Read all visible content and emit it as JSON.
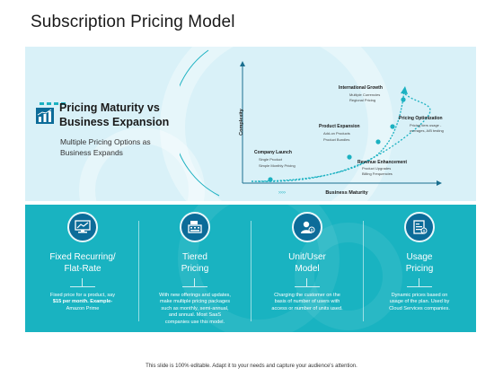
{
  "title": "Subscription Pricing Model",
  "side": {
    "heading_line1": "Pricing Maturity vs",
    "heading_line2": "Business Expansion",
    "sub_line1": "Multiple Pricing Options as",
    "sub_line2": "Business Expands"
  },
  "diagram": {
    "y_label": "Complexity",
    "x_label": "Business Maturity",
    "stages": [
      {
        "name": "Company Launch",
        "bullets": [
          "Single Product",
          "Simple Monthly Pricing"
        ]
      },
      {
        "name": "Revenue Enhancement",
        "bullets": [
          "Product Upgrades",
          "Billing Frequencies"
        ]
      },
      {
        "name": "Product Expansion",
        "bullets": [
          "Add-on Products",
          "Product Bundles"
        ]
      },
      {
        "name": "Pricing Optimization",
        "bullets": [
          "Pricing tiers usage -",
          "overages, A/B testing"
        ]
      },
      {
        "name": "International Growth",
        "bullets": [
          "Multiple Currencies",
          "Regional Pricing"
        ]
      }
    ]
  },
  "models": [
    {
      "icon": "monitor-chart-icon",
      "title_line1": "Fixed Recurring/",
      "title_line2": "Flat-Rate",
      "desc": [
        "Fixed price for a product, say",
        "$15 per month. Example-",
        "Amazon Prime"
      ]
    },
    {
      "icon": "cash-register-icon",
      "title_line1": "Tiered",
      "title_line2": "Pricing",
      "desc": [
        "With new offerings and updates,",
        "make multiple pricing packages",
        "such as monthly, semi-annual,",
        "and annual. Most SaaS",
        "companies use this model."
      ]
    },
    {
      "icon": "user-dollar-icon",
      "title_line1": "Unit/User",
      "title_line2": "Model",
      "desc": [
        "Charging the customer on the",
        "basis of number of users with",
        "access or number of units used."
      ]
    },
    {
      "icon": "usage-document-icon",
      "title_line1": "Usage",
      "title_line2": "Pricing",
      "desc": [
        "Dynamic prices based on",
        "usage of the plan. Used by",
        "Cloud Services companies."
      ]
    }
  ],
  "footer": "This slide is 100% editable. Adapt it to your needs and capture your audience's attention.",
  "colors": {
    "accent": "#1bb1c1",
    "dark_blue": "#0c6c99",
    "light_panel": "#d9f1f8",
    "teal_panel": "#19b3c1"
  }
}
